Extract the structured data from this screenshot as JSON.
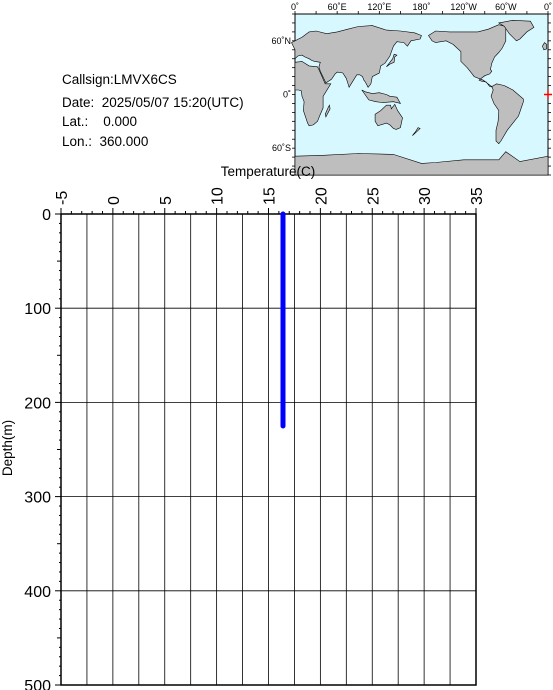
{
  "info": {
    "callsign": "Callsign:LMVX6CS",
    "date": "Date:  2025/05/07 15:20(UTC)",
    "lat": "Lat.:    0.000",
    "lon": "Lon.:  360.000"
  },
  "map": {
    "top_labels": [
      "0˚",
      "60˚E",
      "120˚E",
      "180˚",
      "120˚W",
      "60˚W",
      "0˚"
    ],
    "side_labels": [
      "60˚N",
      "0˚",
      "60˚S"
    ],
    "ocean_color": "#d8f8ff",
    "land_color": "#bebebe",
    "marker_color": "#ff0000",
    "marker_icon": "plus-icon"
  },
  "chart_data": {
    "type": "line",
    "xlabel": "Temperature(C)",
    "ylabel": "Depth(m)",
    "xlim": [
      -5,
      35
    ],
    "ylim": [
      0,
      500
    ],
    "x_axis_position": "top",
    "y_inverted": true,
    "grid": true,
    "xticks": [
      -5,
      0,
      5,
      10,
      15,
      20,
      25,
      30,
      35
    ],
    "yticks": [
      0,
      100,
      200,
      300,
      400,
      500
    ],
    "series": [
      {
        "color": "#0000ff",
        "points": [
          [
            16.4,
            0
          ],
          [
            16.4,
            50
          ],
          [
            16.4,
            100
          ],
          [
            16.4,
            150
          ],
          [
            16.4,
            200
          ],
          [
            16.4,
            225
          ]
        ]
      }
    ]
  }
}
